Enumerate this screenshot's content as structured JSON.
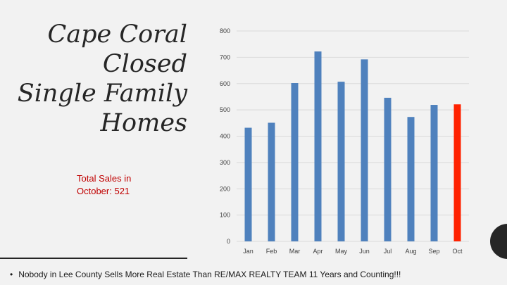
{
  "title_lines": [
    "Cape Coral",
    "Closed",
    "Single Family",
    "Homes"
  ],
  "total_sales": {
    "line1": "Total Sales in",
    "line2": "October: 521"
  },
  "footnote": "Nobody in Lee County Sells More Real Estate Than RE/MAX REALTY  TEAM  11 Years and Counting!!!",
  "colors": {
    "bar": "#4f81bd",
    "highlight": "#ff2200",
    "grid": "#d9d9d9",
    "background": "#f2f2f2",
    "total_text": "#c00000"
  },
  "chart_data": {
    "type": "bar",
    "categories": [
      "Jan",
      "Feb",
      "Mar",
      "Apr",
      "May",
      "Jun",
      "Jul",
      "Aug",
      "Sep",
      "Oct"
    ],
    "values": [
      432,
      451,
      602,
      722,
      607,
      692,
      546,
      473,
      519,
      521
    ],
    "highlight_index": 9,
    "yticks": [
      0,
      100,
      200,
      300,
      400,
      500,
      600,
      700,
      800
    ],
    "ylim": [
      0,
      800
    ],
    "grid": true,
    "title": "",
    "xlabel": "",
    "ylabel": ""
  }
}
